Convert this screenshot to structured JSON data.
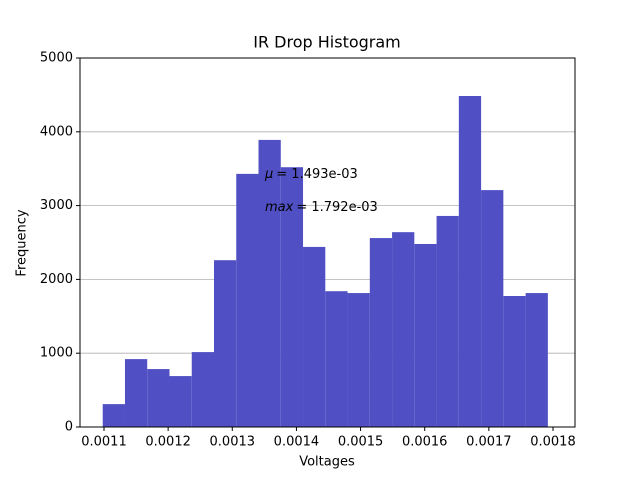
{
  "chart_data": {
    "type": "histogram",
    "title": "IR Drop Histogram",
    "x_label": "Voltages",
    "y_label": "Frequency",
    "color": "#5050c4",
    "bins": [
      0.001098,
      0.0011327,
      0.0011674,
      0.0012021,
      0.0012368,
      0.0012715,
      0.0013062,
      0.0013409,
      0.0013756,
      0.0014103,
      0.001445,
      0.0014797,
      0.0015144,
      0.0015491,
      0.0015838,
      0.0016185,
      0.0016532,
      0.0016879,
      0.0017226,
      0.0017573,
      0.001792
    ],
    "values": [
      310,
      920,
      785,
      690,
      1015,
      2260,
      3430,
      3890,
      3520,
      2440,
      1840,
      1815,
      2560,
      2640,
      2480,
      2860,
      4485,
      3210,
      1775,
      1815
    ],
    "xlim": [
      0.0010626,
      0.0018343
    ],
    "ylim": [
      0,
      5000
    ],
    "xticks": [
      0.0011,
      0.0012,
      0.0013,
      0.0014,
      0.0015,
      0.0016,
      0.0017,
      0.0018
    ],
    "yticks": [
      0,
      1000,
      2000,
      3000,
      4000,
      5000
    ],
    "grid": "y",
    "annotations": [
      {
        "symbol": "μ",
        "text": "= 1.493e-03"
      },
      {
        "symbol": "max",
        "text": "= 1.792e-03"
      }
    ]
  }
}
